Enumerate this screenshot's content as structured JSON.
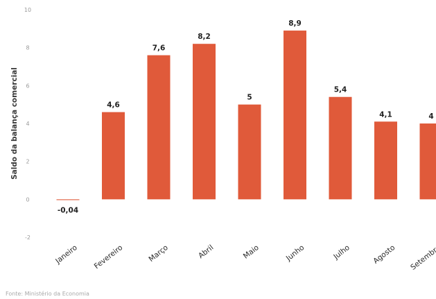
{
  "chart_data": {
    "type": "bar",
    "categories": [
      "Janeiro",
      "Fevereiro",
      "Março",
      "Abril",
      "Maio",
      "Junho",
      "Julho",
      "Agosto",
      "Setembro"
    ],
    "values": [
      -0.04,
      4.6,
      7.6,
      8.2,
      5,
      8.9,
      5.4,
      4.1,
      4
    ],
    "data_labels": [
      "-0,04",
      "4,6",
      "7,6",
      "8,2",
      "5",
      "8,9",
      "5,4",
      "4,1",
      "4"
    ],
    "ylabel": "Saldo da balança comercial",
    "xlabel": "",
    "ylim": [
      -2,
      10
    ],
    "yticks": [
      -2,
      0,
      2,
      4,
      6,
      8,
      10
    ],
    "ytick_labels": [
      "-2",
      "0",
      "2",
      "4",
      "6",
      "8",
      "10"
    ],
    "bar_color": "#e05a3a",
    "grid": false,
    "legend": "none"
  },
  "source_note": "Fonte: Ministério da Economia"
}
